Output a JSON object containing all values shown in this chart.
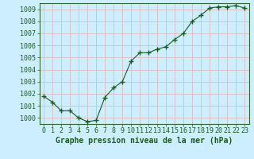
{
  "x": [
    0,
    1,
    2,
    3,
    4,
    5,
    6,
    7,
    8,
    9,
    10,
    11,
    12,
    13,
    14,
    15,
    16,
    17,
    18,
    19,
    20,
    21,
    22,
    23
  ],
  "y": [
    1001.8,
    1001.3,
    1000.6,
    1000.6,
    1000.0,
    999.7,
    999.8,
    1001.7,
    1002.5,
    1003.0,
    1004.7,
    1005.4,
    1005.4,
    1005.7,
    1005.9,
    1006.5,
    1007.0,
    1008.0,
    1008.5,
    1009.1,
    1009.2,
    1009.2,
    1009.3,
    1009.1
  ],
  "xlim": [
    -0.5,
    23.5
  ],
  "ylim": [
    999.5,
    1009.5
  ],
  "yticks": [
    1000,
    1001,
    1002,
    1003,
    1004,
    1005,
    1006,
    1007,
    1008,
    1009
  ],
  "xticks": [
    0,
    1,
    2,
    3,
    4,
    5,
    6,
    7,
    8,
    9,
    10,
    11,
    12,
    13,
    14,
    15,
    16,
    17,
    18,
    19,
    20,
    21,
    22,
    23
  ],
  "xlabel": "Graphe pression niveau de la mer (hPa)",
  "line_color": "#1a5c1a",
  "marker": "+",
  "marker_size": 4.0,
  "bg_color": "#cceeff",
  "grid_color": "#ddbbbb",
  "axis_color": "#336633",
  "tick_label_color": "#1a5c1a",
  "xlabel_color": "#1a5c1a",
  "xlabel_fontsize": 7,
  "tick_fontsize": 6,
  "line_width": 0.8,
  "line_style": "-"
}
